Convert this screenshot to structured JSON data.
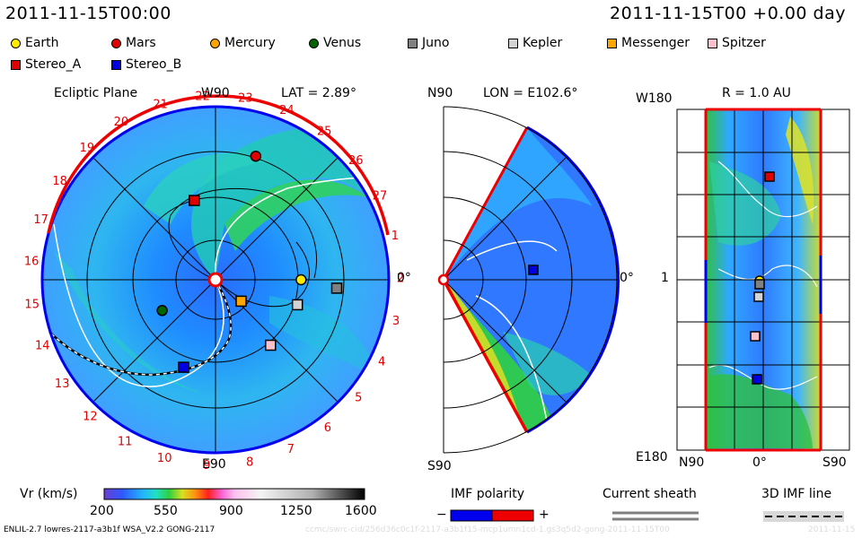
{
  "header": {
    "datetime_left": "2011-11-15T00:00",
    "datetime_right": "2011-11-15T00 +0.00 day"
  },
  "legend": [
    {
      "label": "Earth",
      "shape": "circle",
      "color": "#ffea00"
    },
    {
      "label": "Mars",
      "shape": "circle",
      "color": "#e00000"
    },
    {
      "label": "Mercury",
      "shape": "circle",
      "color": "#ffa500"
    },
    {
      "label": "Venus",
      "shape": "circle",
      "color": "#006400"
    },
    {
      "label": "Juno",
      "shape": "square",
      "color": "#808080"
    },
    {
      "label": "Kepler",
      "shape": "square",
      "color": "#d3d3d3"
    },
    {
      "label": "Messenger",
      "shape": "square",
      "color": "#ffa500"
    },
    {
      "label": "Spitzer",
      "shape": "square",
      "color": "#ffc0cb"
    },
    {
      "label": "Stereo_A",
      "shape": "square",
      "color": "#e00000"
    },
    {
      "label": "Stereo_B",
      "shape": "square",
      "color": "#0000e0"
    }
  ],
  "panels": {
    "ecliptic": {
      "title": "Ecliptic Plane",
      "top_label": "W90",
      "bottom_label": "E90",
      "right_label": "0°",
      "lat_text": "LAT = 2.89°",
      "ring_numbers": [
        "1",
        "2",
        "3",
        "4",
        "5",
        "6",
        "7",
        "8",
        "9",
        "10",
        "11",
        "12",
        "13",
        "14",
        "15",
        "16",
        "17",
        "18",
        "19",
        "20",
        "21",
        "22",
        "23",
        "24",
        "25",
        "26",
        "27"
      ],
      "ring_color": "#e00000"
    },
    "meridional": {
      "top_label": "N90",
      "bottom_label": "S90",
      "right_label": "0°",
      "lon_text": "LON = E102.6°"
    },
    "sphere": {
      "title": "R = 1.0 AU",
      "top_left_label": "W180",
      "bottom_left_label": "E180",
      "mid_left_label": "1",
      "bottom_labels": [
        "N90",
        "0°",
        "S90"
      ]
    }
  },
  "colorbar": {
    "label": "Vr (km/s)",
    "ticks": [
      "200",
      "550",
      "900",
      "1250",
      "1600"
    ],
    "min": 200,
    "max": 1600
  },
  "imf_polarity": {
    "title": "IMF polarity",
    "minus": "−",
    "plus": "+",
    "colors": {
      "negative": "#0000ee",
      "positive": "#ee0000"
    }
  },
  "current_sheath": {
    "title": "Current sheath"
  },
  "imf_line": {
    "title": "3D IMF line"
  },
  "footer": {
    "model": "ENLIL-2.7 lowres-2117-a3b1f WSA_V2.2 GONG-2117",
    "watermark": "ccmc/swrc-cid/256d36c0c1f-2117-a3b1f15-mcp1umn1cd-1.gs3q5d2-gong-2011-11-15T00",
    "watermark_date": "2011-11-15"
  },
  "chart_data": [
    {
      "type": "heatmap",
      "title": "Ecliptic Plane",
      "subtitle": "LAT = 2.89°",
      "bodies": [
        {
          "name": "Earth",
          "r_au": 1.0,
          "angle_deg": 0
        },
        {
          "name": "Mars",
          "r_au": 1.52,
          "angle_deg": 72
        },
        {
          "name": "Mercury",
          "r_au": 0.39,
          "angle_deg": -40
        },
        {
          "name": "Venus",
          "r_au": 0.72,
          "angle_deg": -150
        },
        {
          "name": "Juno",
          "r_au": 1.42,
          "angle_deg": -4
        },
        {
          "name": "Kepler",
          "r_au": 1.0,
          "angle_deg": -17
        },
        {
          "name": "Messenger",
          "r_au": 0.39,
          "angle_deg": -40
        },
        {
          "name": "Spitzer",
          "r_au": 1.0,
          "angle_deg": -50
        },
        {
          "name": "Stereo_A",
          "r_au": 0.96,
          "angle_deg": 105
        },
        {
          "name": "Stereo_B",
          "r_au": 1.09,
          "angle_deg": -110
        }
      ],
      "colorbar_range": [
        200,
        1600
      ]
    },
    {
      "type": "heatmap",
      "title": "LON = E102.6°",
      "lat_range": [
        -60,
        60
      ],
      "bodies": [
        {
          "name": "Stereo_B"
        }
      ]
    },
    {
      "type": "heatmap",
      "title": "R = 1.0 AU",
      "xlim": [
        "N90",
        "S90"
      ],
      "ylim": [
        "W180",
        "E180"
      ],
      "bodies": [
        {
          "name": "Stereo_A"
        },
        {
          "name": "Earth"
        },
        {
          "name": "Juno"
        },
        {
          "name": "Kepler"
        },
        {
          "name": "Spitzer"
        },
        {
          "name": "Stereo_B"
        }
      ]
    }
  ]
}
